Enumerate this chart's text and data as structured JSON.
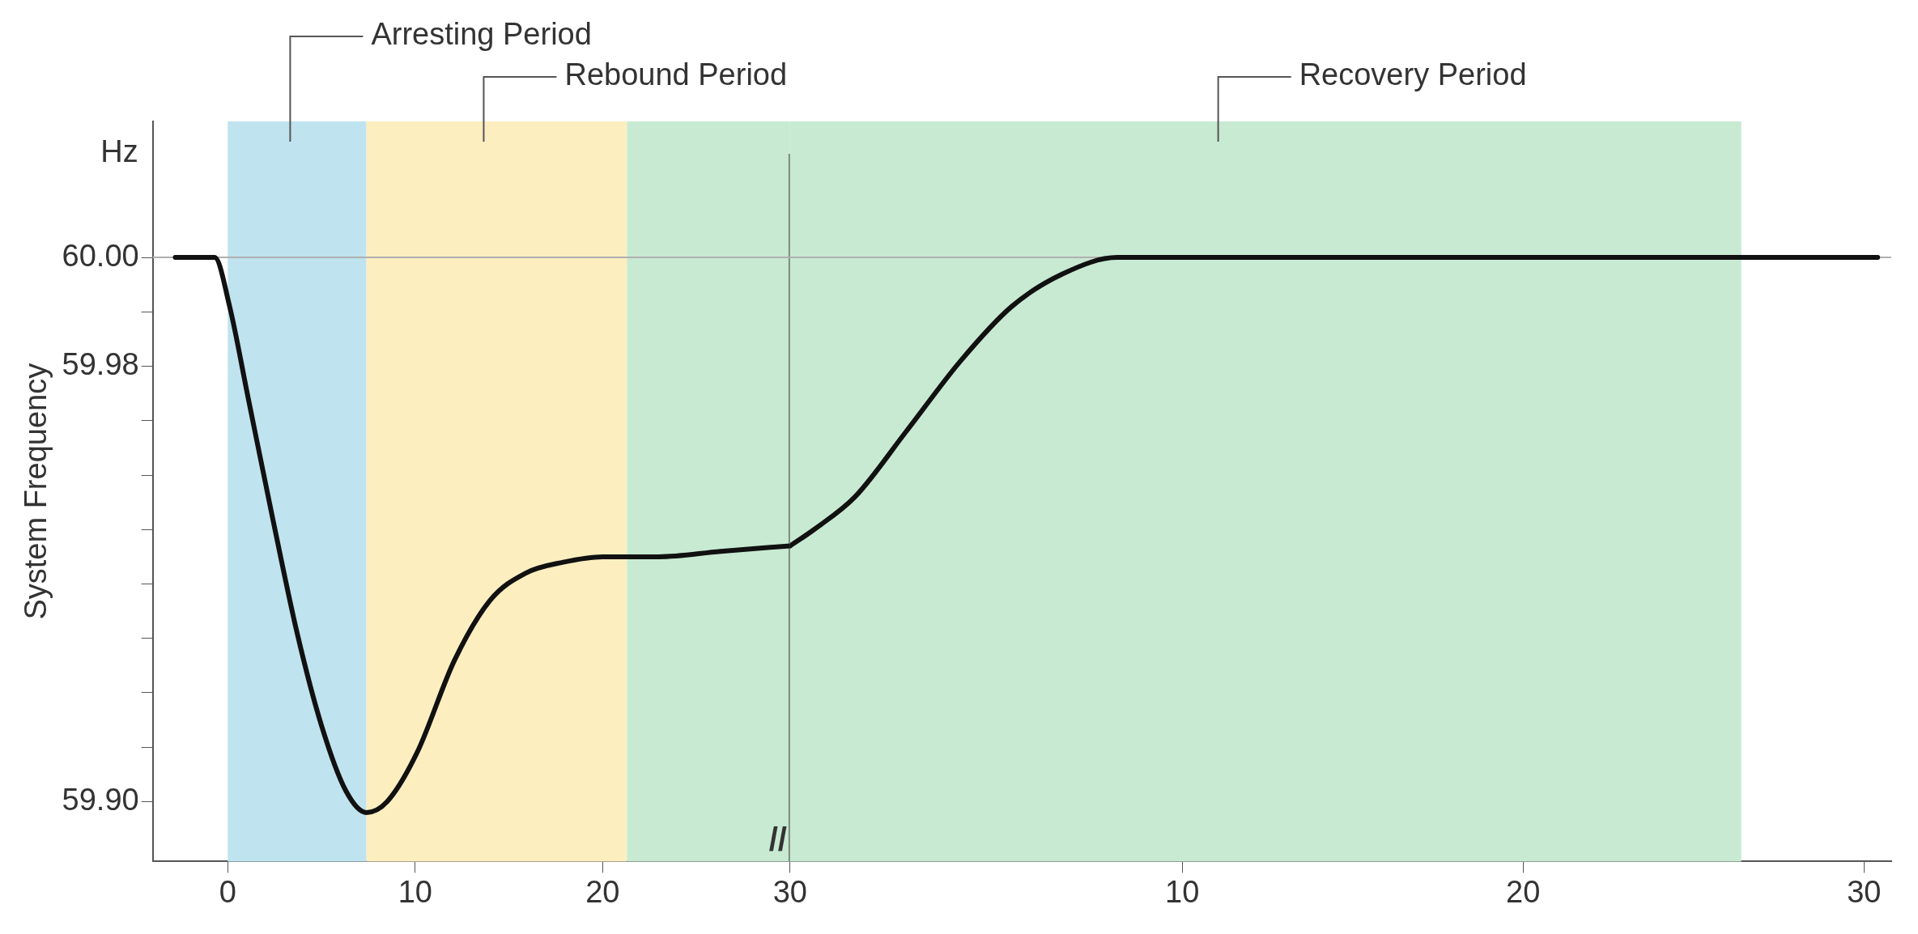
{
  "chart_data": [
    {
      "type": "line",
      "ylabel": "System Frequency",
      "annotations": [
        "Hz",
        "Arresting Period",
        "Rebound Period",
        "//"
      ],
      "series": [
        {
          "color": "#111111",
          "x": [
            -2.8,
            -0.7,
            0.1,
            1.1,
            2.4,
            3.7,
            5.0,
            6.3,
            7.4,
            8.5,
            10.1,
            12.1,
            14.0,
            15.9,
            17.9,
            20.0,
            23.0,
            26.3,
            30.0
          ],
          "values": [
            60.0,
            60.0,
            59.991,
            59.974,
            59.952,
            59.931,
            59.914,
            59.902,
            59.898,
            59.9,
            59.909,
            59.926,
            59.937,
            59.942,
            59.944,
            59.945,
            59.945,
            59.946,
            59.947
          ]
        }
      ],
      "xlim": [
        -4,
        30
      ],
      "xticks": [
        0,
        10,
        20,
        30
      ],
      "ylim": [
        59.889,
        60.025
      ],
      "yticks": [
        {
          "value": 59.9,
          "label": "59.90"
        },
        {
          "value": 59.91,
          "label": null
        },
        {
          "value": 59.92,
          "label": null
        },
        {
          "value": 59.93,
          "label": null
        },
        {
          "value": 59.94,
          "label": null
        },
        {
          "value": 59.95,
          "label": null
        },
        {
          "value": 59.96,
          "label": null
        },
        {
          "value": 59.97,
          "label": null
        },
        {
          "value": 59.98,
          "label": "59.98"
        },
        {
          "value": 59.99,
          "label": null
        },
        {
          "value": 60.0,
          "label": "60.00"
        }
      ],
      "bands": [
        {
          "axis": "x",
          "from": 0,
          "to": 7.4,
          "color": "#bfe3ef"
        },
        {
          "axis": "x",
          "from": 7.4,
          "to": 21.3,
          "color": "#fdeec0"
        },
        {
          "axis": "x",
          "from": 21.3,
          "to": 30,
          "color": "#c8ead2"
        }
      ],
      "ref_lines": [
        {
          "axis": "x",
          "value": 30,
          "color": "#7a8a80"
        },
        {
          "axis": "y",
          "value": 60.0,
          "color": "#b0b0b0"
        }
      ],
      "grid": false,
      "legend": false
    },
    {
      "type": "line",
      "annotations": [
        "Recovery Period"
      ],
      "series": [
        {
          "color": "#111111",
          "x": [
            -1.5,
            -0.8,
            0.4,
            1.9,
            3.5,
            5.0,
            6.5,
            8.1,
            30.4
          ],
          "values": [
            59.947,
            59.95,
            59.956,
            59.968,
            59.981,
            59.991,
            59.997,
            60.0,
            60.0
          ]
        }
      ],
      "xlim": [
        -1.5,
        30.8
      ],
      "xticks": [
        10,
        20,
        30
      ],
      "ylim": [
        59.889,
        60.025
      ],
      "bands": [
        {
          "axis": "x",
          "from": -1.5,
          "to": 26.4,
          "color": "#c8ead2"
        }
      ],
      "ref_lines": [
        {
          "axis": "y",
          "value": 60.0,
          "color": "#b0b0b0"
        }
      ],
      "tick_labels": "x",
      "grid": false,
      "legend": false
    }
  ]
}
